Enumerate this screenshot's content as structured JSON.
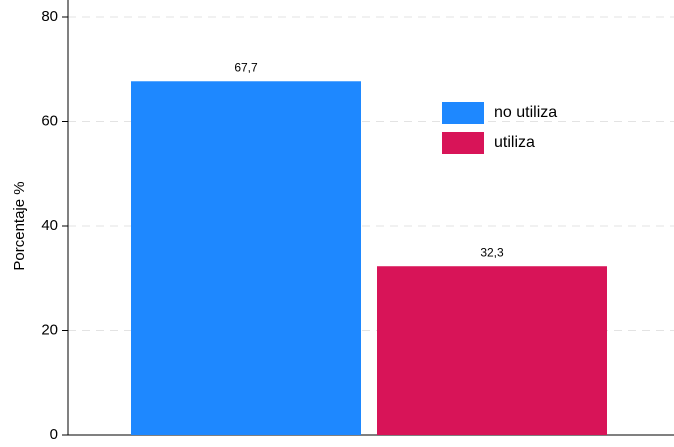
{
  "chart_data": {
    "type": "bar",
    "y_label": "Porcentaje %",
    "categories": [
      null
    ],
    "series": [
      {
        "name": "no utiliza",
        "color": "#1e88ff",
        "values": [
          67.7
        ],
        "value_labels": [
          "67,7"
        ]
      },
      {
        "name": "utiliza",
        "color": "#d81458",
        "values": [
          32.3
        ],
        "value_labels": [
          "32,3"
        ]
      }
    ],
    "ylim": [
      0,
      80
    ],
    "yticks": [
      0,
      20,
      40,
      60,
      80
    ],
    "grid": true,
    "legend": "upper right"
  }
}
